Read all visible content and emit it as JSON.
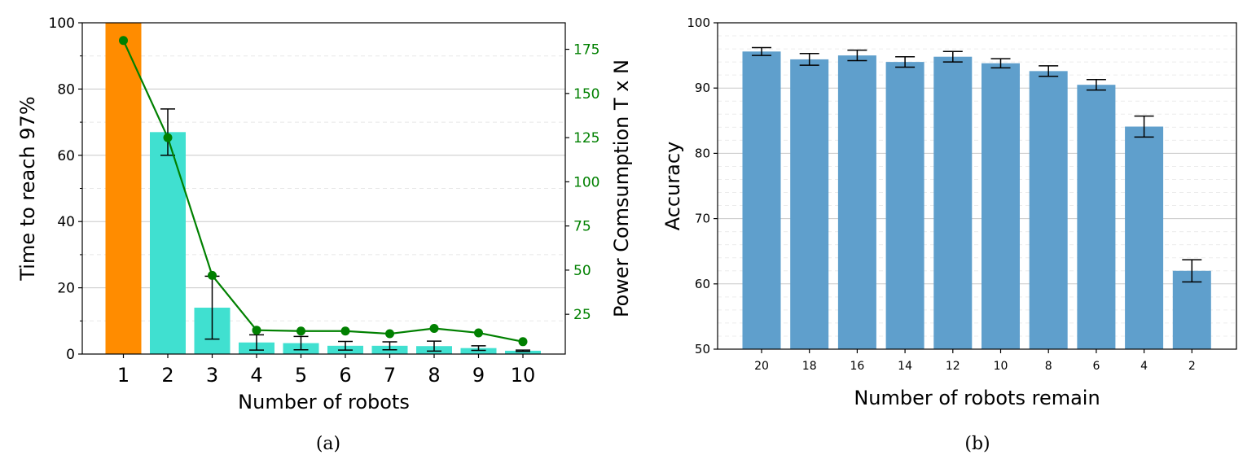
{
  "colors": {
    "bar_highlight": "#FF8C00",
    "bar_a": "#40E0D0",
    "line_a": "#008000",
    "bar_b": "#5F9FCC",
    "error_bar": "#000000",
    "grid": "#cccccc"
  },
  "chart_data": [
    {
      "type": "bar",
      "caption": "(a)",
      "xlabel": "Number of robots",
      "ylabel": "Time to reach 97%",
      "y2label": "Power Comsumption T x N",
      "categories": [
        "1",
        "2",
        "3",
        "4",
        "5",
        "6",
        "7",
        "8",
        "9",
        "10"
      ],
      "series": [
        {
          "axis": "left",
          "kind": "bar",
          "values": [
            100,
            67,
            14,
            3.5,
            3.3,
            2.5,
            2.5,
            2.4,
            1.8,
            1.0
          ],
          "error": [
            0,
            7,
            9.5,
            2.3,
            2.0,
            1.3,
            1.2,
            1.5,
            0.7,
            0.2
          ]
        },
        {
          "axis": "right",
          "kind": "line",
          "values": [
            180,
            125,
            47,
            16,
            15.5,
            15.5,
            14,
            17,
            14.5,
            9.5
          ]
        }
      ],
      "ylim": [
        0,
        100
      ],
      "y2lim": [
        2.5,
        190
      ],
      "yticks": [
        0,
        20,
        40,
        60,
        80,
        100
      ],
      "y2ticks": [
        25,
        50,
        75,
        100,
        125,
        150,
        175
      ],
      "grid": true
    },
    {
      "type": "bar",
      "caption": "(b)",
      "xlabel": "Number of robots remain",
      "ylabel": "Accuracy",
      "categories": [
        "20",
        "18",
        "16",
        "14",
        "12",
        "10",
        "8",
        "6",
        "4",
        "2"
      ],
      "values": [
        95.6,
        94.4,
        95.0,
        94.0,
        94.8,
        93.8,
        92.6,
        90.5,
        84.1,
        62.0
      ],
      "error": [
        0.6,
        0.9,
        0.8,
        0.8,
        0.8,
        0.7,
        0.8,
        0.8,
        1.6,
        1.7
      ],
      "ylim": [
        50,
        100
      ],
      "yticks": [
        50,
        60,
        70,
        80,
        90,
        100
      ],
      "grid": true
    }
  ]
}
